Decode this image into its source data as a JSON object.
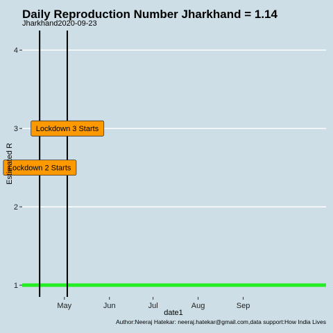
{
  "colors": {
    "background": "#cddee6",
    "gridline": "#ffffff",
    "reference_line": "#22ee22",
    "event_line": "#000000",
    "label_fill": "#ff9900"
  },
  "chart_data": {
    "type": "line",
    "title": "Daily Reproduction Number Jharkhand = 1.14",
    "subtitle": "Jharkhand2020-09-23",
    "xlabel": "date1",
    "ylabel": "Estimated R",
    "caption": "Author:Neeraj Hatekar: neeraj.hatekar@gmail.com,data support:How India Lives",
    "xlim": [
      "2020-04-02",
      "2020-10-28"
    ],
    "ylim": [
      0.85,
      4.25
    ],
    "x_ticks": [
      {
        "date": "2020-05-01",
        "label": "May"
      },
      {
        "date": "2020-06-01",
        "label": "Jun"
      },
      {
        "date": "2020-07-01",
        "label": "Jul"
      },
      {
        "date": "2020-08-01",
        "label": "Aug"
      },
      {
        "date": "2020-09-01",
        "label": "Sep"
      }
    ],
    "y_ticks": [
      1,
      2,
      3,
      4
    ],
    "grid": "horizontal",
    "series": [],
    "reference_line": {
      "y": 1
    },
    "vertical_lines": [
      {
        "date": "2020-04-14"
      },
      {
        "date": "2020-05-03"
      }
    ],
    "annotations": [
      {
        "date": "2020-04-14",
        "y": 2.5,
        "text": "Lockdown 2 Starts"
      },
      {
        "date": "2020-05-03",
        "y": 3.0,
        "text": "Lockdown 3 Starts"
      }
    ]
  }
}
